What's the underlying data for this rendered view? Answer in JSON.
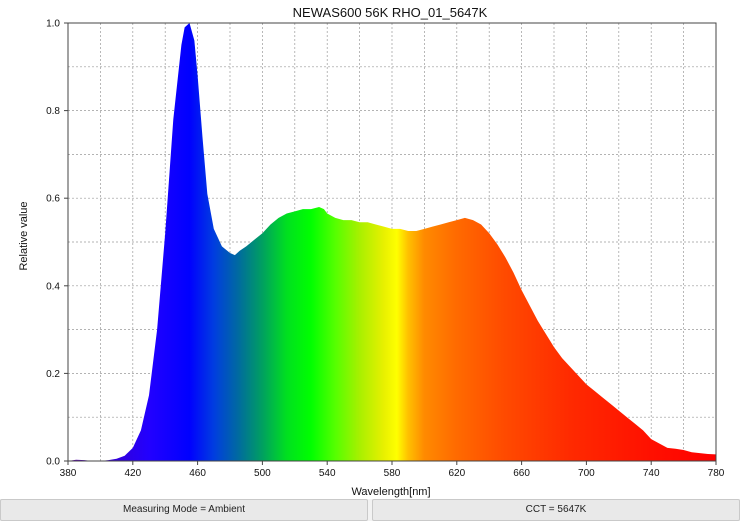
{
  "chart_data": {
    "type": "area",
    "title": "NEWAS600 56K RHO_01_5647K",
    "xlabel": "Wavelength[nm]",
    "ylabel": "Relative value",
    "xlim": [
      380,
      780
    ],
    "ylim": [
      0,
      1.0
    ],
    "x_ticks": [
      380,
      420,
      460,
      500,
      540,
      580,
      620,
      660,
      700,
      740,
      780
    ],
    "y_ticks": [
      0.0,
      0.2,
      0.4,
      0.6,
      0.8,
      1.0
    ],
    "x_tick_labels": [
      "380",
      "420",
      "460",
      "500",
      "540",
      "580",
      "620",
      "660",
      "700",
      "740",
      "780"
    ],
    "y_tick_labels": [
      "0.0",
      "0.2",
      "0.4",
      "0.6",
      "0.8",
      "1.0"
    ],
    "grid": true,
    "fill": "visible-spectrum",
    "series": [
      {
        "x": [
          380,
          385,
          390,
          395,
          400,
          405,
          410,
          415,
          420,
          425,
          430,
          435,
          440,
          445,
          450,
          452,
          455,
          458,
          460,
          463,
          466,
          470,
          475,
          480,
          483,
          486,
          490,
          495,
          500,
          505,
          510,
          515,
          520,
          525,
          530,
          535,
          538,
          540,
          545,
          550,
          555,
          560,
          565,
          570,
          575,
          580,
          585,
          590,
          595,
          600,
          605,
          610,
          615,
          620,
          625,
          630,
          635,
          640,
          645,
          650,
          655,
          660,
          665,
          670,
          675,
          680,
          685,
          690,
          695,
          700,
          705,
          710,
          715,
          720,
          725,
          730,
          735,
          740,
          745,
          750,
          755,
          760,
          765,
          770,
          775,
          780
        ],
        "y": [
          0.0,
          0.003,
          0.002,
          0.0,
          0.0,
          0.002,
          0.005,
          0.012,
          0.03,
          0.07,
          0.15,
          0.3,
          0.52,
          0.78,
          0.95,
          0.99,
          1.0,
          0.96,
          0.88,
          0.74,
          0.61,
          0.53,
          0.49,
          0.475,
          0.47,
          0.48,
          0.49,
          0.505,
          0.52,
          0.54,
          0.555,
          0.565,
          0.57,
          0.575,
          0.575,
          0.58,
          0.575,
          0.565,
          0.555,
          0.55,
          0.55,
          0.545,
          0.545,
          0.54,
          0.535,
          0.53,
          0.53,
          0.525,
          0.525,
          0.53,
          0.535,
          0.54,
          0.545,
          0.55,
          0.555,
          0.55,
          0.54,
          0.52,
          0.495,
          0.465,
          0.43,
          0.39,
          0.355,
          0.32,
          0.29,
          0.26,
          0.235,
          0.215,
          0.195,
          0.175,
          0.16,
          0.145,
          0.13,
          0.115,
          0.1,
          0.085,
          0.07,
          0.05,
          0.04,
          0.03,
          0.028,
          0.025,
          0.02,
          0.018,
          0.016,
          0.015
        ]
      }
    ]
  },
  "status": {
    "mode": "Measuring Mode = Ambient",
    "cct": "CCT = 5647K"
  }
}
